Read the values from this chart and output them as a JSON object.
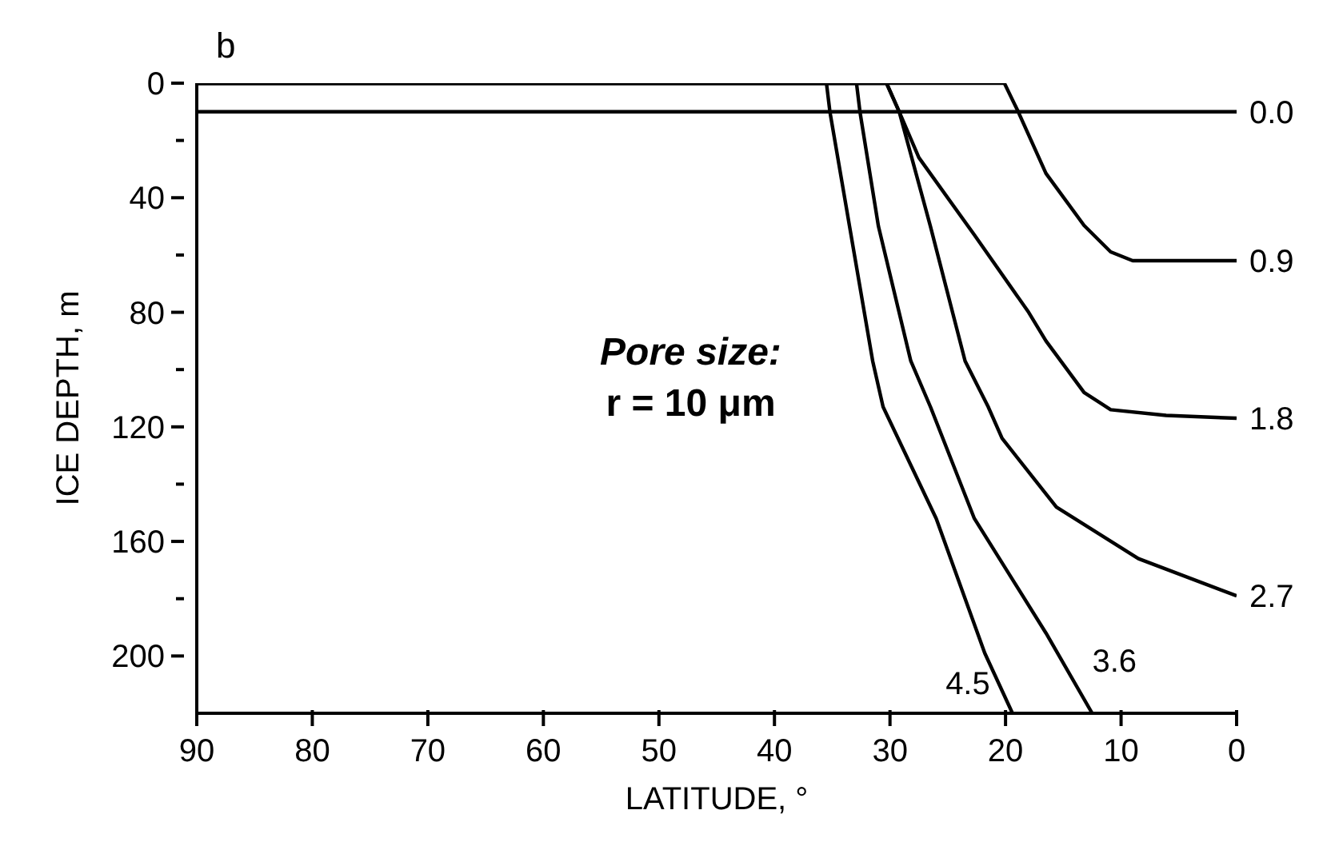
{
  "chart_data": {
    "type": "line",
    "title": "b",
    "xlabel": "LATITUDE, °",
    "ylabel": "ICE DEPTH, m",
    "xlim": [
      90,
      0
    ],
    "xticks": [
      90,
      80,
      70,
      60,
      50,
      40,
      30,
      20,
      10,
      0
    ],
    "ylim": [
      220,
      0
    ],
    "yticks": [
      0,
      {
        "value": 20,
        "label": null
      },
      40,
      {
        "value": 60,
        "label": null
      },
      80,
      {
        "value": 100,
        "label": null
      },
      120,
      {
        "value": 140,
        "label": null
      },
      160,
      {
        "value": 180,
        "label": null
      },
      200
    ],
    "marker": "none",
    "line_style": "solid",
    "annotations": [
      "Pore size:",
      "r = 10 μm"
    ],
    "series": [
      {
        "name": "0.0",
        "color": "#000000",
        "x": [
          90,
          0
        ],
        "values": [
          10,
          10
        ]
      },
      {
        "name": "0.9",
        "color": "#000000",
        "x": [
          90,
          20.1,
          18.9,
          16.5,
          13.2,
          10.9,
          9,
          0
        ],
        "values": [
          0,
          0,
          10,
          31.5,
          49.7,
          58.9,
          62,
          62
        ]
      },
      {
        "name": "1.8",
        "color": "#000000",
        "x": [
          90,
          30.3,
          29.2,
          27.5,
          22.7,
          18,
          16.5,
          13.2,
          10.9,
          6.1,
          0
        ],
        "values": [
          0,
          0,
          10,
          26,
          53,
          80,
          90,
          108,
          114,
          116,
          117
        ]
      },
      {
        "name": "2.7",
        "color": "#000000",
        "x": [
          90,
          30.3,
          29.2,
          26.5,
          23.5,
          21.5,
          20.3,
          15.6,
          8.5,
          0
        ],
        "values": [
          0,
          0,
          10,
          50,
          97,
          113,
          124,
          148,
          166,
          179
        ]
      },
      {
        "name": "3.6",
        "color": "#000000",
        "x": [
          90,
          32.9,
          32.6,
          31,
          28.2,
          26.5,
          22.7,
          16.5,
          12.5
        ],
        "values": [
          0,
          0,
          10,
          50,
          97,
          113,
          152,
          192,
          220
        ]
      },
      {
        "name": "4.5",
        "color": "#000000",
        "x": [
          90,
          35.5,
          35.2,
          33.5,
          31.5,
          30.6,
          26,
          21.8,
          19.4
        ],
        "values": [
          0,
          0,
          10,
          50,
          97,
          113,
          152,
          199,
          220
        ]
      }
    ]
  }
}
